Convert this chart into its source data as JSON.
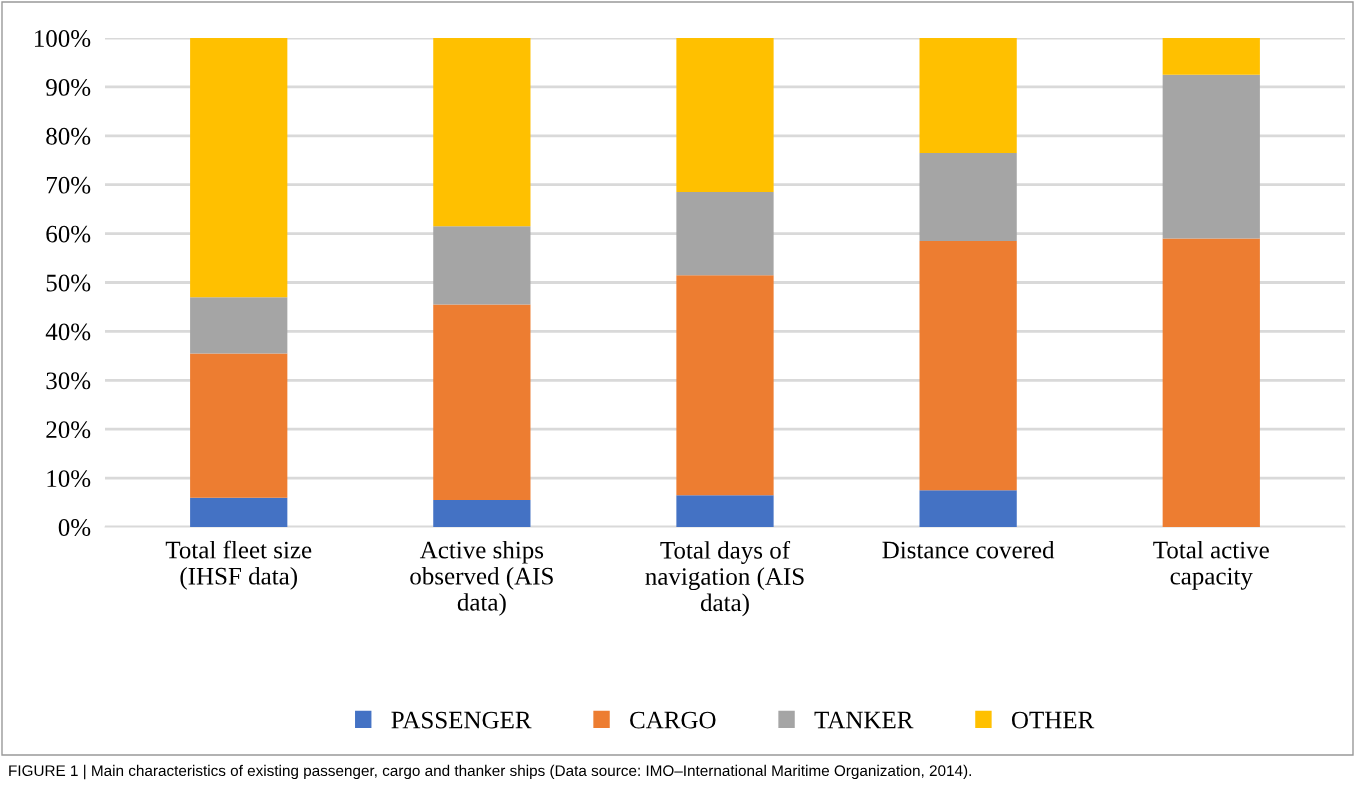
{
  "chart_data": {
    "type": "bar",
    "stacked": true,
    "categories": [
      "Total fleet size\n(IHSF data)",
      "Active ships\nobserved (AIS\ndata)",
      "Total days of\nnavigation (AIS\ndata)",
      "Distance covered",
      "Total active\ncapacity"
    ],
    "series": [
      {
        "name": "PASSENGER",
        "color": "#4472c4",
        "values": [
          6,
          5.5,
          6.5,
          7.5,
          0
        ]
      },
      {
        "name": "CARGO",
        "color": "#ed7d31",
        "values": [
          29.5,
          40,
          45,
          51,
          59
        ]
      },
      {
        "name": "TANKER",
        "color": "#a5a5a5",
        "values": [
          11.5,
          16,
          17,
          18,
          33.5
        ]
      },
      {
        "name": "OTHER",
        "color": "#ffc000",
        "values": [
          53,
          38.5,
          31.5,
          23.5,
          7.5
        ]
      }
    ],
    "ylim": [
      0,
      100
    ],
    "yticks": [
      {
        "value": 0,
        "label": "0%"
      },
      {
        "value": 10,
        "label": "10%"
      },
      {
        "value": 20,
        "label": "20%"
      },
      {
        "value": 30,
        "label": "30%"
      },
      {
        "value": 40,
        "label": "40%"
      },
      {
        "value": 50,
        "label": "50%"
      },
      {
        "value": 60,
        "label": "60%"
      },
      {
        "value": 70,
        "label": "70%"
      },
      {
        "value": 80,
        "label": "80%"
      },
      {
        "value": 90,
        "label": "90%"
      },
      {
        "value": 100,
        "label": "100%"
      }
    ],
    "grid": "y",
    "legend": "bottom",
    "annotations": [
      "FIGURE 1 | Main characteristics of existing passenger, cargo and thanker ships (Data source: IMO–International Maritime Organization, 2014)."
    ]
  }
}
